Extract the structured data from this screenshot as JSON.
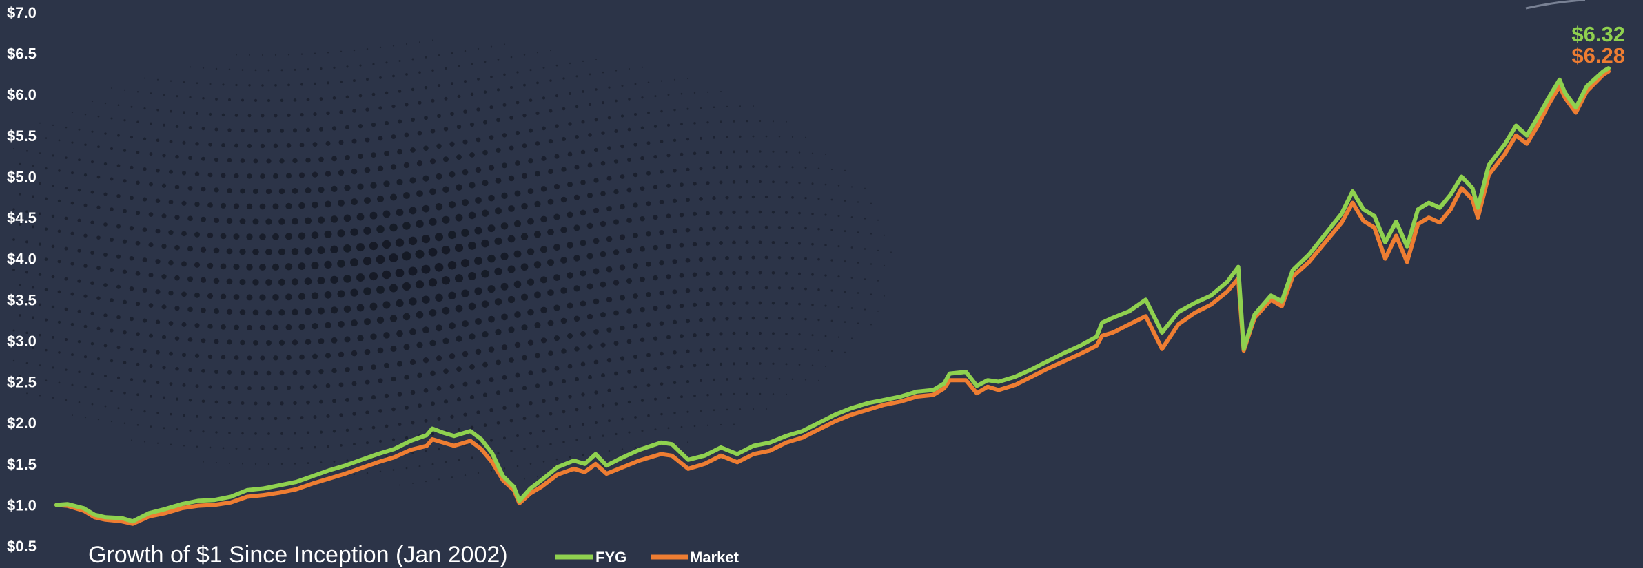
{
  "colors": {
    "background": "#2c3448",
    "fyg": "#8fd14f",
    "market": "#ee7d32",
    "text": "#ffffff"
  },
  "chart_data": {
    "type": "line",
    "title": "Growth of $1 Since Inception (Jan 2002)",
    "xlabel": "",
    "ylabel": "",
    "ylim": [
      0.5,
      7.0
    ],
    "yticks": [
      "$0.5",
      "$1.0",
      "$1.5",
      "$2.0",
      "$2.5",
      "$3.0",
      "$3.5",
      "$4.0",
      "$4.5",
      "$5.0",
      "$5.5",
      "$6.0",
      "$6.5",
      "$7.0"
    ],
    "ytick_values": [
      0.5,
      1.0,
      1.5,
      2.0,
      2.5,
      3.0,
      3.5,
      4.0,
      4.5,
      5.0,
      5.5,
      6.0,
      6.5,
      7.0
    ],
    "x_start": "2002-01",
    "x_end": "2025-10",
    "grid": false,
    "legend": "bottom-center",
    "series": [
      {
        "name": "FYG",
        "end_label": "$6.32",
        "points": [
          [
            "2002-01",
            1.0
          ],
          [
            "2002-03",
            1.01
          ],
          [
            "2002-06",
            0.96
          ],
          [
            "2002-08",
            0.88
          ],
          [
            "2002-10",
            0.85
          ],
          [
            "2003-01",
            0.84
          ],
          [
            "2003-03",
            0.8
          ],
          [
            "2003-06",
            0.9
          ],
          [
            "2003-09",
            0.95
          ],
          [
            "2003-12",
            1.01
          ],
          [
            "2004-03",
            1.05
          ],
          [
            "2004-06",
            1.06
          ],
          [
            "2004-09",
            1.1
          ],
          [
            "2004-12",
            1.18
          ],
          [
            "2005-03",
            1.2
          ],
          [
            "2005-06",
            1.24
          ],
          [
            "2005-09",
            1.28
          ],
          [
            "2005-12",
            1.35
          ],
          [
            "2006-03",
            1.42
          ],
          [
            "2006-06",
            1.48
          ],
          [
            "2006-09",
            1.55
          ],
          [
            "2006-12",
            1.62
          ],
          [
            "2007-03",
            1.68
          ],
          [
            "2007-06",
            1.78
          ],
          [
            "2007-09",
            1.85
          ],
          [
            "2007-10",
            1.93
          ],
          [
            "2007-12",
            1.88
          ],
          [
            "2008-02",
            1.84
          ],
          [
            "2008-05",
            1.9
          ],
          [
            "2008-07",
            1.8
          ],
          [
            "2008-09",
            1.63
          ],
          [
            "2008-11",
            1.35
          ],
          [
            "2009-01",
            1.22
          ],
          [
            "2009-02",
            1.05
          ],
          [
            "2009-04",
            1.2
          ],
          [
            "2009-06",
            1.3
          ],
          [
            "2009-09",
            1.46
          ],
          [
            "2009-12",
            1.54
          ],
          [
            "2010-02",
            1.5
          ],
          [
            "2010-04",
            1.62
          ],
          [
            "2010-06",
            1.48
          ],
          [
            "2010-09",
            1.58
          ],
          [
            "2010-12",
            1.67
          ],
          [
            "2011-04",
            1.76
          ],
          [
            "2011-06",
            1.74
          ],
          [
            "2011-09",
            1.55
          ],
          [
            "2011-12",
            1.6
          ],
          [
            "2012-03",
            1.7
          ],
          [
            "2012-06",
            1.62
          ],
          [
            "2012-09",
            1.72
          ],
          [
            "2012-12",
            1.76
          ],
          [
            "2013-03",
            1.84
          ],
          [
            "2013-06",
            1.9
          ],
          [
            "2013-09",
            2.0
          ],
          [
            "2013-12",
            2.1
          ],
          [
            "2014-03",
            2.18
          ],
          [
            "2014-06",
            2.24
          ],
          [
            "2014-09",
            2.28
          ],
          [
            "2014-12",
            2.32
          ],
          [
            "2015-03",
            2.38
          ],
          [
            "2015-06",
            2.4
          ],
          [
            "2015-08",
            2.48
          ],
          [
            "2015-09",
            2.6
          ],
          [
            "2015-12",
            2.62
          ],
          [
            "2016-02",
            2.45
          ],
          [
            "2016-04",
            2.52
          ],
          [
            "2016-06",
            2.5
          ],
          [
            "2016-09",
            2.56
          ],
          [
            "2016-12",
            2.65
          ],
          [
            "2017-03",
            2.75
          ],
          [
            "2017-06",
            2.85
          ],
          [
            "2017-09",
            2.94
          ],
          [
            "2017-12",
            3.05
          ],
          [
            "2018-01",
            3.22
          ],
          [
            "2018-03",
            3.28
          ],
          [
            "2018-06",
            3.36
          ],
          [
            "2018-09",
            3.5
          ],
          [
            "2018-12",
            3.1
          ],
          [
            "2019-03",
            3.35
          ],
          [
            "2019-06",
            3.46
          ],
          [
            "2019-09",
            3.55
          ],
          [
            "2019-12",
            3.72
          ],
          [
            "2020-02",
            3.9
          ],
          [
            "2020-03",
            2.9
          ],
          [
            "2020-05",
            3.32
          ],
          [
            "2020-08",
            3.55
          ],
          [
            "2020-10",
            3.48
          ],
          [
            "2020-12",
            3.86
          ],
          [
            "2021-03",
            4.05
          ],
          [
            "2021-06",
            4.3
          ],
          [
            "2021-09",
            4.55
          ],
          [
            "2021-11",
            4.82
          ],
          [
            "2022-01",
            4.6
          ],
          [
            "2022-03",
            4.52
          ],
          [
            "2022-05",
            4.2
          ],
          [
            "2022-07",
            4.45
          ],
          [
            "2022-09",
            4.15
          ],
          [
            "2022-11",
            4.6
          ],
          [
            "2023-01",
            4.68
          ],
          [
            "2023-03",
            4.62
          ],
          [
            "2023-05",
            4.78
          ],
          [
            "2023-07",
            5.0
          ],
          [
            "2023-09",
            4.86
          ],
          [
            "2023-10",
            4.62
          ],
          [
            "2023-12",
            5.14
          ],
          [
            "2024-03",
            5.4
          ],
          [
            "2024-05",
            5.62
          ],
          [
            "2024-07",
            5.5
          ],
          [
            "2024-09",
            5.72
          ],
          [
            "2024-11",
            5.96
          ],
          [
            "2025-01",
            6.18
          ],
          [
            "2025-02",
            6.02
          ],
          [
            "2025-04",
            5.84
          ],
          [
            "2025-06",
            6.1
          ],
          [
            "2025-09",
            6.28
          ],
          [
            "2025-10",
            6.32
          ]
        ]
      },
      {
        "name": "Market",
        "end_label": "$6.28",
        "points": [
          [
            "2002-01",
            1.0
          ],
          [
            "2002-03",
            0.99
          ],
          [
            "2002-06",
            0.93
          ],
          [
            "2002-08",
            0.85
          ],
          [
            "2002-10",
            0.82
          ],
          [
            "2003-01",
            0.8
          ],
          [
            "2003-03",
            0.77
          ],
          [
            "2003-06",
            0.86
          ],
          [
            "2003-09",
            0.9
          ],
          [
            "2003-12",
            0.96
          ],
          [
            "2004-03",
            0.99
          ],
          [
            "2004-06",
            1.0
          ],
          [
            "2004-09",
            1.03
          ],
          [
            "2004-12",
            1.1
          ],
          [
            "2005-03",
            1.12
          ],
          [
            "2005-06",
            1.15
          ],
          [
            "2005-09",
            1.19
          ],
          [
            "2005-12",
            1.26
          ],
          [
            "2006-03",
            1.32
          ],
          [
            "2006-06",
            1.38
          ],
          [
            "2006-09",
            1.45
          ],
          [
            "2006-12",
            1.52
          ],
          [
            "2007-03",
            1.58
          ],
          [
            "2007-06",
            1.67
          ],
          [
            "2007-09",
            1.72
          ],
          [
            "2007-10",
            1.8
          ],
          [
            "2007-12",
            1.76
          ],
          [
            "2008-02",
            1.72
          ],
          [
            "2008-05",
            1.78
          ],
          [
            "2008-07",
            1.68
          ],
          [
            "2008-09",
            1.52
          ],
          [
            "2008-11",
            1.3
          ],
          [
            "2009-01",
            1.18
          ],
          [
            "2009-02",
            1.02
          ],
          [
            "2009-04",
            1.14
          ],
          [
            "2009-06",
            1.22
          ],
          [
            "2009-09",
            1.37
          ],
          [
            "2009-12",
            1.44
          ],
          [
            "2010-02",
            1.4
          ],
          [
            "2010-04",
            1.5
          ],
          [
            "2010-06",
            1.38
          ],
          [
            "2010-09",
            1.46
          ],
          [
            "2010-12",
            1.54
          ],
          [
            "2011-04",
            1.62
          ],
          [
            "2011-06",
            1.6
          ],
          [
            "2011-09",
            1.44
          ],
          [
            "2011-12",
            1.5
          ],
          [
            "2012-03",
            1.6
          ],
          [
            "2012-06",
            1.52
          ],
          [
            "2012-09",
            1.62
          ],
          [
            "2012-12",
            1.66
          ],
          [
            "2013-03",
            1.76
          ],
          [
            "2013-06",
            1.82
          ],
          [
            "2013-09",
            1.92
          ],
          [
            "2013-12",
            2.02
          ],
          [
            "2014-03",
            2.1
          ],
          [
            "2014-06",
            2.16
          ],
          [
            "2014-09",
            2.22
          ],
          [
            "2014-12",
            2.26
          ],
          [
            "2015-03",
            2.32
          ],
          [
            "2015-06",
            2.34
          ],
          [
            "2015-08",
            2.42
          ],
          [
            "2015-09",
            2.52
          ],
          [
            "2015-12",
            2.52
          ],
          [
            "2016-02",
            2.36
          ],
          [
            "2016-04",
            2.44
          ],
          [
            "2016-06",
            2.4
          ],
          [
            "2016-09",
            2.46
          ],
          [
            "2016-12",
            2.56
          ],
          [
            "2017-03",
            2.66
          ],
          [
            "2017-06",
            2.75
          ],
          [
            "2017-09",
            2.84
          ],
          [
            "2017-12",
            2.94
          ],
          [
            "2018-01",
            3.06
          ],
          [
            "2018-03",
            3.1
          ],
          [
            "2018-06",
            3.2
          ],
          [
            "2018-09",
            3.3
          ],
          [
            "2018-12",
            2.9
          ],
          [
            "2019-03",
            3.2
          ],
          [
            "2019-06",
            3.34
          ],
          [
            "2019-09",
            3.44
          ],
          [
            "2019-12",
            3.6
          ],
          [
            "2020-02",
            3.76
          ],
          [
            "2020-03",
            2.88
          ],
          [
            "2020-05",
            3.28
          ],
          [
            "2020-08",
            3.5
          ],
          [
            "2020-10",
            3.42
          ],
          [
            "2020-12",
            3.78
          ],
          [
            "2021-03",
            3.96
          ],
          [
            "2021-06",
            4.2
          ],
          [
            "2021-09",
            4.44
          ],
          [
            "2021-11",
            4.68
          ],
          [
            "2022-01",
            4.46
          ],
          [
            "2022-03",
            4.38
          ],
          [
            "2022-05",
            4.0
          ],
          [
            "2022-07",
            4.28
          ],
          [
            "2022-09",
            3.96
          ],
          [
            "2022-11",
            4.42
          ],
          [
            "2023-01",
            4.5
          ],
          [
            "2023-03",
            4.44
          ],
          [
            "2023-05",
            4.6
          ],
          [
            "2023-07",
            4.86
          ],
          [
            "2023-09",
            4.72
          ],
          [
            "2023-10",
            4.5
          ],
          [
            "2023-12",
            5.02
          ],
          [
            "2024-03",
            5.28
          ],
          [
            "2024-05",
            5.5
          ],
          [
            "2024-07",
            5.4
          ],
          [
            "2024-09",
            5.62
          ],
          [
            "2024-11",
            5.88
          ],
          [
            "2025-01",
            6.1
          ],
          [
            "2025-02",
            5.96
          ],
          [
            "2025-04",
            5.78
          ],
          [
            "2025-06",
            6.04
          ],
          [
            "2025-09",
            6.24
          ],
          [
            "2025-10",
            6.28
          ]
        ]
      }
    ]
  }
}
